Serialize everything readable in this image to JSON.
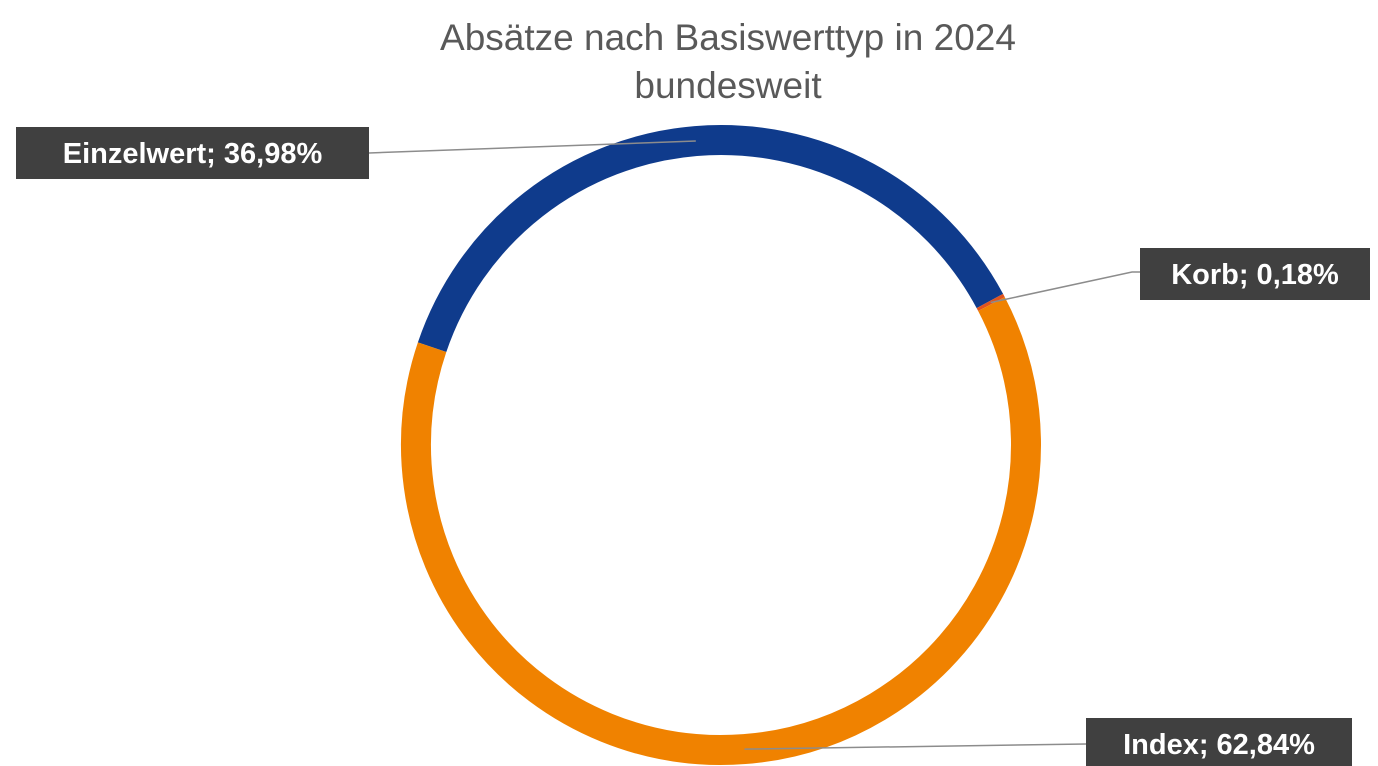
{
  "chart_data": {
    "type": "pie",
    "variant": "doughnut",
    "title": [
      "Absätze nach Basiswerttyp in 2024",
      "bundesweit"
    ],
    "slices": [
      {
        "name": "Einzelwert",
        "value": 36.98,
        "label": "Einzelwert; 36,98%",
        "color": "#0f3b8c"
      },
      {
        "name": "Korb",
        "value": 0.18,
        "label": "Korb; 0,18%",
        "color": "#e0531e"
      },
      {
        "name": "Index",
        "value": 62.84,
        "label": "Index; 62,84%",
        "color": "#f08200"
      }
    ],
    "legend": "none",
    "data_labels": "outside-with-leader-lines"
  }
}
